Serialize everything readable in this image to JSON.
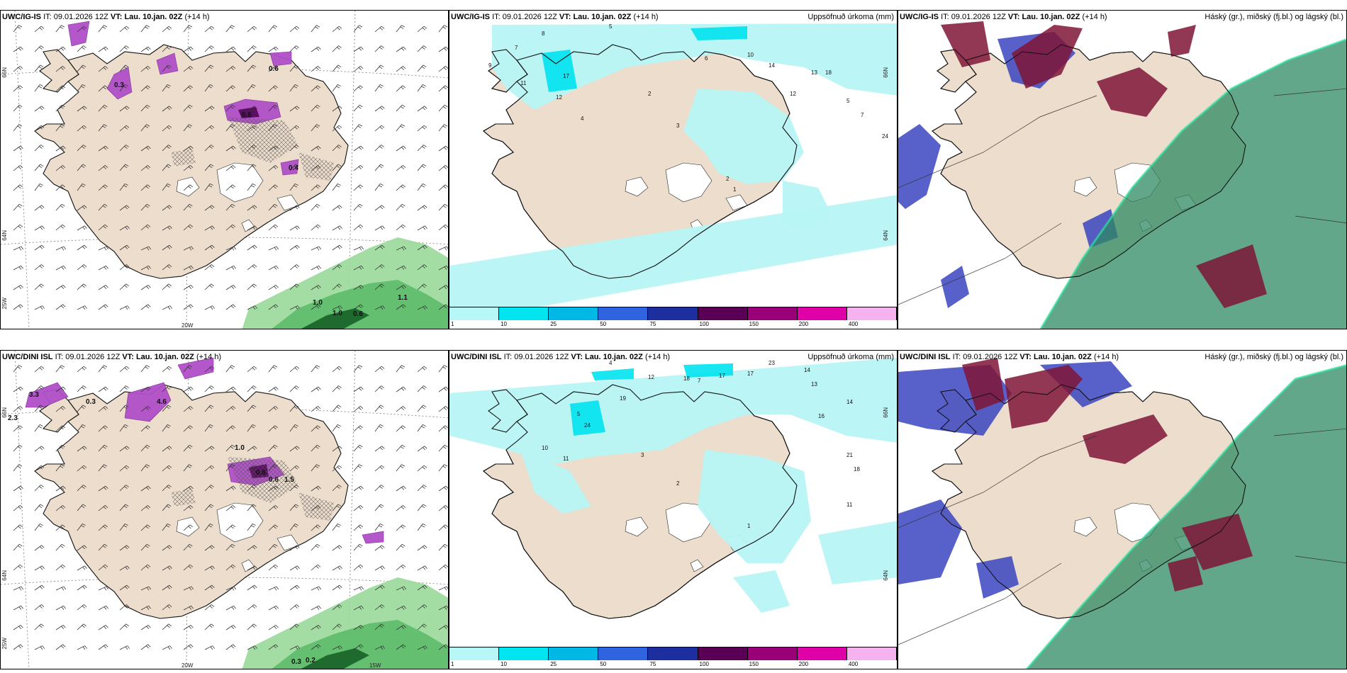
{
  "rows": [
    {
      "panels": [
        {
          "type": "wind",
          "model": "UWC/IG-IS",
          "it_label": "IT:",
          "it_value": "09.01.2026 12Z",
          "vt_label": "VT:",
          "vt_value": "Lau. 10.jan. 02Z",
          "lead": "(+14 h)",
          "right_title": "",
          "lon_labels": [
            "20W"
          ],
          "lat_labels": [
            "66N",
            "64N",
            "25W"
          ],
          "values": [
            "0.6",
            "0.6",
            "1.0",
            "1.0",
            "0.6",
            "1.1",
            "0.4",
            "0.3"
          ]
        },
        {
          "type": "precip",
          "model": "UWC/IG-IS",
          "it_label": "IT:",
          "it_value": "09.01.2026 12Z",
          "vt_label": "VT:",
          "vt_value": "Lau. 10.jan. 02Z",
          "lead": "(+14 h)",
          "right_title": "Uppsöfnuð úrkoma (mm)",
          "lat_labels": [
            "66N",
            "64N"
          ],
          "values": [
            "8",
            "5",
            "7",
            "9",
            "11",
            "17",
            "12",
            "4",
            "2",
            "3",
            "6",
            "10",
            "12",
            "14",
            "13",
            "18",
            "5",
            "7",
            "24",
            "2",
            "1"
          ]
        },
        {
          "type": "cloud",
          "model": "UWC/IG-IS",
          "it_label": "IT:",
          "it_value": "09.01.2026 12Z",
          "vt_label": "VT:",
          "vt_value": "Lau. 10.jan. 02Z",
          "lead": "(+14 h)",
          "right_title": "Háský (gr.), miðský (fj.bl.) og lágský (bl.)"
        }
      ]
    },
    {
      "panels": [
        {
          "type": "wind",
          "model": "UWC/DINI ISL",
          "it_label": "IT:",
          "it_value": "09.01.2026 12Z",
          "vt_label": "VT:",
          "vt_value": "Lau. 10.jan. 02Z",
          "lead": "(+14 h)",
          "right_title": "",
          "lon_labels": [
            "20W",
            "15W"
          ],
          "lat_labels": [
            "66N",
            "64N",
            "25W"
          ],
          "values": [
            "2.3",
            "3.3",
            "4.6",
            "1.0",
            "0.6",
            "0.6",
            "1.5",
            "0.3",
            "0.2",
            "0.3"
          ]
        },
        {
          "type": "precip",
          "model": "UWC/DINI ISL",
          "it_label": "IT:",
          "it_value": "09.01.2026 12Z",
          "vt_label": "VT:",
          "vt_value": "Lau. 10.jan. 02Z",
          "lead": "(+14 h)",
          "right_title": "Uppsöfnuð úrkoma (mm)",
          "lat_labels": [
            "66N",
            "64N"
          ],
          "values": [
            "4",
            "12",
            "18",
            "17",
            "17",
            "23",
            "14",
            "13",
            "19",
            "24",
            "10",
            "11",
            "16",
            "7",
            "5",
            "14",
            "21",
            "18",
            "11",
            "3",
            "2",
            "1"
          ]
        },
        {
          "type": "cloud",
          "model": "UWC/DINI ISL",
          "it_label": "IT:",
          "it_value": "09.01.2026 12Z",
          "vt_label": "VT:",
          "vt_value": "Lau. 10.jan. 02Z",
          "lead": "(+14 h)",
          "right_title": "Háský (gr.), miðský (fj.bl.) og lágský (bl.)"
        }
      ]
    }
  ],
  "colorbar": {
    "labels": [
      "1",
      "10",
      "25",
      "50",
      "75",
      "100",
      "150",
      "200",
      "400"
    ],
    "colors": [
      "#b8f7f7",
      "#00e5ef",
      "#00b8e6",
      "#2f64e0",
      "#1d2f9e",
      "#5a0054",
      "#990078",
      "#e000a8",
      "#f4b3ef"
    ]
  },
  "colors": {
    "land": "#ecddcc",
    "coast": "#111111",
    "precip_light": "#b7f4f4",
    "precip_mid": "#00e3ee",
    "snow_purple": "#b04fc8",
    "snow_dark": "#5a1060",
    "rain_green": "#9ad99a",
    "rain_dark": "#1f6b2f",
    "cloud_high": "#2d8a63",
    "cloud_mid": "#7f1537",
    "cloud_low": "#3a45c0"
  }
}
